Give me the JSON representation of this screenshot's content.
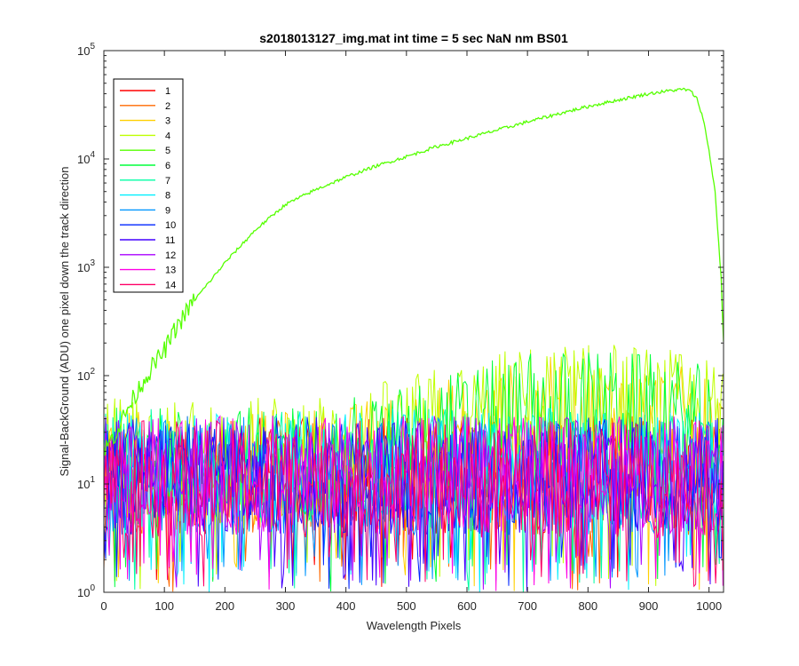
{
  "chart_data": {
    "type": "line",
    "title": "s2018013127_img.mat int time = 5 sec  NaN nm BS01",
    "xlabel": "Wavelength Pixels",
    "ylabel": "Signal-BackGround (ADU) one pixel down the track direction",
    "xlim": [
      0,
      1024
    ],
    "ylim": [
      1,
      100000
    ],
    "yscale": "log",
    "x_ticks": [
      "0",
      "100",
      "200",
      "300",
      "400",
      "500",
      "600",
      "700",
      "800",
      "900",
      "1000"
    ],
    "x_tick_values": [
      0,
      100,
      200,
      300,
      400,
      500,
      600,
      700,
      800,
      900,
      1000
    ],
    "y_ticks": [
      {
        "base": "10",
        "exp": "0",
        "value": 1
      },
      {
        "base": "10",
        "exp": "1",
        "value": 10
      },
      {
        "base": "10",
        "exp": "2",
        "value": 100
      },
      {
        "base": "10",
        "exp": "3",
        "value": 1000
      },
      {
        "base": "10",
        "exp": "4",
        "value": 10000
      },
      {
        "base": "10",
        "exp": "5",
        "value": 100000
      }
    ],
    "legend_position": "top-left",
    "grid": false,
    "series": [
      {
        "name": "1",
        "color": "#ff0000",
        "kind": "noise",
        "level": 12
      },
      {
        "name": "2",
        "color": "#ff6a00",
        "kind": "noise",
        "level": 12
      },
      {
        "name": "3",
        "color": "#ffd000",
        "kind": "noise",
        "level": 22
      },
      {
        "name": "4",
        "color": "#bfff00",
        "kind": "noise",
        "level": 30
      },
      {
        "name": "5",
        "color": "#55ff00",
        "kind": "signal",
        "x": [
          0,
          20,
          40,
          60,
          80,
          100,
          120,
          150,
          180,
          200,
          250,
          300,
          350,
          400,
          450,
          500,
          550,
          600,
          650,
          700,
          750,
          800,
          850,
          900,
          940,
          960,
          970,
          980,
          990,
          1000,
          1010,
          1020,
          1024
        ],
        "values": [
          20,
          30,
          50,
          80,
          120,
          170,
          280,
          500,
          800,
          1100,
          2200,
          3800,
          5200,
          6800,
          8600,
          10500,
          13000,
          15500,
          18500,
          22000,
          26000,
          30500,
          35000,
          40000,
          43000,
          44000,
          42000,
          36000,
          24000,
          12000,
          5000,
          800,
          200
        ]
      },
      {
        "name": "6",
        "color": "#00ff3c",
        "kind": "noise",
        "level": 25
      },
      {
        "name": "7",
        "color": "#00ffa5",
        "kind": "noise",
        "level": 14
      },
      {
        "name": "8",
        "color": "#00f0ff",
        "kind": "noise",
        "level": 14
      },
      {
        "name": "9",
        "color": "#0096ff",
        "kind": "noise",
        "level": 12
      },
      {
        "name": "10",
        "color": "#0026ff",
        "kind": "noise",
        "level": 12
      },
      {
        "name": "11",
        "color": "#4400ff",
        "kind": "noise",
        "level": 12
      },
      {
        "name": "12",
        "color": "#aa00ff",
        "kind": "noise",
        "level": 12
      },
      {
        "name": "13",
        "color": "#ff00e6",
        "kind": "noise",
        "level": 12
      },
      {
        "name": "14",
        "color": "#ff0066",
        "kind": "noise",
        "level": 11
      }
    ]
  }
}
